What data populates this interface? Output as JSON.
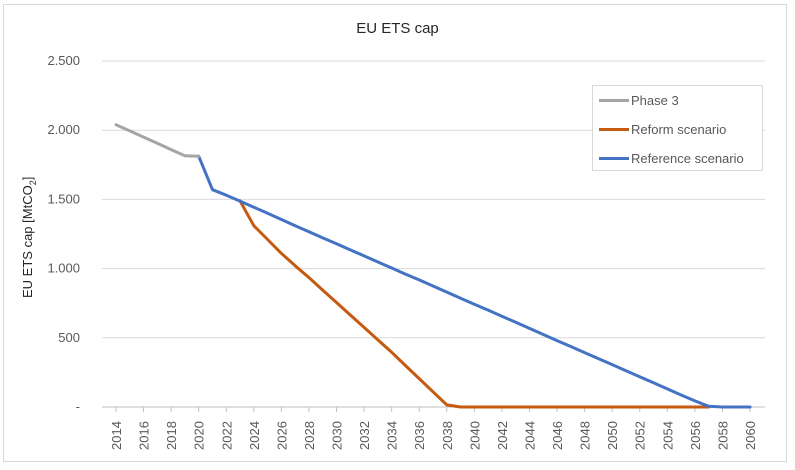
{
  "colors": {
    "phase3": "#a5a5a5",
    "reform": "#c55a11",
    "reference": "#4472c4",
    "gridline": "#d9d9d9",
    "text": "#595959"
  },
  "chart_data": {
    "type": "line",
    "title": "EU ETS cap",
    "ylabel": "EU ETS cap [MtCO2]",
    "ylabel_parts": {
      "main": "EU ETS cap [MtCO",
      "sub": "2",
      "end": "]"
    },
    "xlabel": "",
    "ylim": [
      0,
      2500
    ],
    "yticks": [
      0,
      500,
      1000,
      1500,
      2000,
      2500
    ],
    "ytick_labels": [
      "-",
      "500",
      "1.000",
      "1.500",
      "2.000",
      "2.500"
    ],
    "xlim": [
      2014,
      2060
    ],
    "xtick_labels": [
      "2014",
      "2016",
      "2018",
      "2020",
      "2022",
      "2024",
      "2026",
      "2028",
      "2030",
      "2032",
      "2034",
      "2036",
      "2038",
      "2040",
      "2042",
      "2044",
      "2046",
      "2048",
      "2050",
      "2052",
      "2054",
      "2056",
      "2058",
      "2060"
    ],
    "grid": true,
    "legend_position": "top-right",
    "series": [
      {
        "name": "Phase 3",
        "color": "#a5a5a5",
        "points": [
          [
            2014,
            2040
          ],
          [
            2015,
            1995
          ],
          [
            2016,
            1950
          ],
          [
            2017,
            1905
          ],
          [
            2018,
            1860
          ],
          [
            2019,
            1815
          ],
          [
            2020,
            1812
          ]
        ]
      },
      {
        "name": "Reform scenario",
        "color": "#c55a11",
        "points": [
          [
            2023,
            1490
          ],
          [
            2024,
            1310
          ],
          [
            2025,
            1210
          ],
          [
            2026,
            1110
          ],
          [
            2027,
            1020
          ],
          [
            2028,
            935
          ],
          [
            2029,
            845
          ],
          [
            2030,
            755
          ],
          [
            2031,
            665
          ],
          [
            2032,
            575
          ],
          [
            2033,
            485
          ],
          [
            2034,
            395
          ],
          [
            2035,
            300
          ],
          [
            2036,
            205
          ],
          [
            2037,
            110
          ],
          [
            2038,
            15
          ],
          [
            2039,
            0
          ],
          [
            2040,
            0
          ],
          [
            2045,
            0
          ],
          [
            2050,
            0
          ],
          [
            2055,
            0
          ],
          [
            2057,
            0
          ]
        ]
      },
      {
        "name": "Reference scenario",
        "color": "#4472c4",
        "points": [
          [
            2020,
            1812
          ],
          [
            2021,
            1570
          ],
          [
            2022,
            1530
          ],
          [
            2023,
            1488
          ],
          [
            2024,
            1444
          ],
          [
            2025,
            1400
          ],
          [
            2026,
            1355
          ],
          [
            2027,
            1310
          ],
          [
            2028,
            1266
          ],
          [
            2029,
            1222
          ],
          [
            2030,
            1180
          ],
          [
            2031,
            1135
          ],
          [
            2032,
            1092
          ],
          [
            2033,
            1048
          ],
          [
            2034,
            1004
          ],
          [
            2035,
            960
          ],
          [
            2036,
            918
          ],
          [
            2037,
            874
          ],
          [
            2038,
            830
          ],
          [
            2039,
            786
          ],
          [
            2040,
            742
          ],
          [
            2041,
            700
          ],
          [
            2042,
            656
          ],
          [
            2043,
            612
          ],
          [
            2044,
            568
          ],
          [
            2045,
            524
          ],
          [
            2046,
            480
          ],
          [
            2047,
            437
          ],
          [
            2048,
            393
          ],
          [
            2049,
            350
          ],
          [
            2050,
            306
          ],
          [
            2051,
            262
          ],
          [
            2052,
            218
          ],
          [
            2053,
            175
          ],
          [
            2054,
            131
          ],
          [
            2055,
            87
          ],
          [
            2056,
            44
          ],
          [
            2057,
            5
          ],
          [
            2058,
            0
          ],
          [
            2059,
            0
          ],
          [
            2060,
            0
          ]
        ]
      }
    ]
  }
}
